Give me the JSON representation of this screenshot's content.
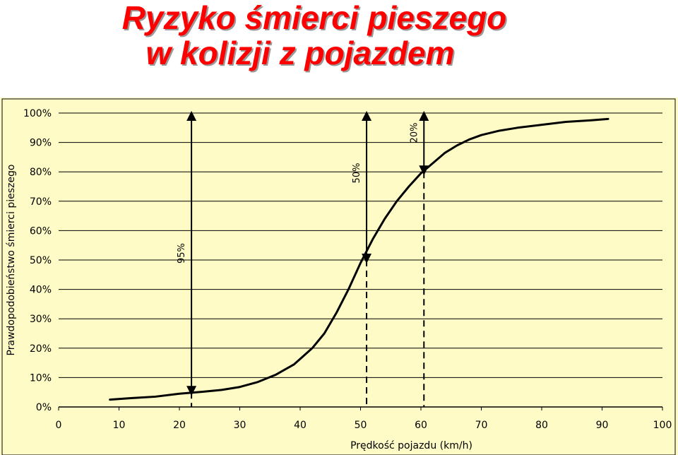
{
  "title": {
    "line1": "Ryzyko śmierci pieszego",
    "line2": "w kolizji z pojazdem"
  },
  "colors": {
    "title": "#ff0000",
    "plot_background": "#fffbc6",
    "gridline": "#000000",
    "curve": "#000000"
  },
  "chart_data": {
    "type": "line",
    "title": "",
    "xlabel": "Prędkość pojazdu (km/h)",
    "ylabel": "Prawdopodobieństwo śmierci pieszego",
    "xlim": [
      0,
      100
    ],
    "ylim": [
      0,
      100
    ],
    "x_ticks": [
      0,
      10,
      20,
      30,
      40,
      50,
      60,
      70,
      80,
      90,
      100
    ],
    "y_ticks": [
      0,
      10,
      20,
      30,
      40,
      50,
      60,
      70,
      80,
      90,
      100
    ],
    "x_tick_labels": [
      "0",
      "10",
      "20",
      "30",
      "40",
      "50",
      "60",
      "70",
      "80",
      "90",
      "100"
    ],
    "y_tick_labels": [
      "0%",
      "10%",
      "20%",
      "30%",
      "40%",
      "50%",
      "60%",
      "70%",
      "80%",
      "90%",
      "100%"
    ],
    "grid": "horizontal",
    "legend": "none",
    "series": [
      {
        "x": [
          8.5,
          12,
          16,
          20,
          24,
          27,
          30,
          33,
          36,
          39,
          42,
          44,
          46,
          48,
          50,
          52,
          54,
          56,
          58,
          60,
          62,
          64,
          66,
          68,
          70,
          73,
          76,
          80,
          84,
          88,
          91
        ],
        "y": [
          2.5,
          3,
          3.5,
          4.5,
          5.2,
          5.8,
          6.8,
          8.5,
          11,
          14.5,
          20,
          25,
          32,
          40,
          49,
          57,
          64,
          70,
          75,
          79.5,
          83,
          86.5,
          89,
          91,
          92.5,
          94,
          95,
          96,
          97,
          97.5,
          98
        ]
      }
    ],
    "annotations": [
      {
        "label": "95%",
        "x": 22,
        "y_from": 5,
        "y_to": 100,
        "dashed_to_axis": true
      },
      {
        "label": "50%",
        "x": 51,
        "y_from": 50,
        "y_to": 100,
        "dashed_to_axis": true
      },
      {
        "label": "20%",
        "x": 60.5,
        "y_from": 80,
        "y_to": 100,
        "dashed_to_axis": true
      }
    ]
  }
}
